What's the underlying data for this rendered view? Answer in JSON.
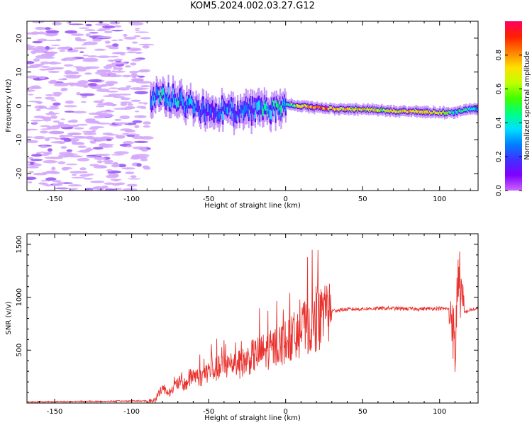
{
  "title": "KOM5.2024.002.03.27.G12",
  "colors": {
    "snr_line": "#e8322e",
    "colorbar": [
      "#cc66ff",
      "#8000ff",
      "#4030ff",
      "#0080ff",
      "#00e0ff",
      "#00ff80",
      "#40ff00",
      "#c0ff00",
      "#ffe000",
      "#ff8000",
      "#ff2000",
      "#ff0060"
    ]
  },
  "chart_data": [
    {
      "type": "heatmap",
      "xlabel": "Height of straight line (km)",
      "ylabel": "Frequency (Hz)",
      "xlim": [
        -168,
        125
      ],
      "ylim": [
        -25,
        25
      ],
      "xticks": [
        -150,
        -100,
        -50,
        0,
        50,
        100
      ],
      "yticks": [
        -20,
        -10,
        0,
        10,
        20
      ],
      "colorbar": {
        "label": "Normalized spectral amplitude",
        "range": [
          0,
          1
        ],
        "ticks": [
          0.0,
          0.2,
          0.4,
          0.6,
          0.8
        ]
      },
      "signal_track": [
        {
          "x": -88,
          "freq": 2.5,
          "amp": 0.3
        },
        {
          "x": -80,
          "freq": 2.5,
          "amp": 0.35
        },
        {
          "x": -70,
          "freq": 1.5,
          "amp": 0.3
        },
        {
          "x": -60,
          "freq": -0.5,
          "amp": 0.25
        },
        {
          "x": -50,
          "freq": -2,
          "amp": 0.2
        },
        {
          "x": -40,
          "freq": -1.5,
          "amp": 0.25
        },
        {
          "x": -30,
          "freq": -1.5,
          "amp": 0.25
        },
        {
          "x": -20,
          "freq": -1,
          "amp": 0.3
        },
        {
          "x": -10,
          "freq": -1.5,
          "amp": 0.35
        },
        {
          "x": 0,
          "freq": 0.5,
          "amp": 0.4
        },
        {
          "x": 10,
          "freq": 0,
          "amp": 0.65
        },
        {
          "x": 20,
          "freq": -0.5,
          "amp": 0.85
        },
        {
          "x": 30,
          "freq": -0.8,
          "amp": 0.75
        },
        {
          "x": 40,
          "freq": -1,
          "amp": 0.7
        },
        {
          "x": 50,
          "freq": -1,
          "amp": 0.7
        },
        {
          "x": 60,
          "freq": -1.3,
          "amp": 0.6
        },
        {
          "x": 70,
          "freq": -1.5,
          "amp": 0.65
        },
        {
          "x": 80,
          "freq": -1.6,
          "amp": 0.75
        },
        {
          "x": 90,
          "freq": -1.8,
          "amp": 0.7
        },
        {
          "x": 100,
          "freq": -2,
          "amp": 0.7
        },
        {
          "x": 110,
          "freq": -1.8,
          "amp": 0.4
        },
        {
          "x": 120,
          "freq": -1,
          "amp": 0.4
        }
      ],
      "noise_region_x": [
        -168,
        -90
      ]
    },
    {
      "type": "line",
      "xlabel": "Height of straight line (km)",
      "ylabel": "SNR (v/v)",
      "xlim": [
        -168,
        125
      ],
      "ylim": [
        0,
        1600
      ],
      "xticks": [
        -150,
        -100,
        -50,
        0,
        50,
        100
      ],
      "yticks": [
        500,
        1000,
        1500
      ],
      "series": [
        {
          "x": [
            -168,
            -120,
            -90,
            -85,
            -80,
            -75,
            -70,
            -65,
            -60,
            -55,
            -50,
            -45,
            -40,
            -35,
            -30,
            -25,
            -20,
            -15,
            -10,
            -5,
            0,
            5,
            10,
            15,
            20,
            25,
            30,
            35,
            40,
            50,
            60,
            70,
            80,
            90,
            100,
            105,
            108,
            110,
            112,
            115,
            120,
            125
          ],
          "y": [
            5,
            10,
            15,
            30,
            150,
            100,
            200,
            180,
            280,
            250,
            320,
            330,
            350,
            380,
            380,
            420,
            470,
            500,
            520,
            560,
            600,
            650,
            700,
            760,
            800,
            840,
            870,
            880,
            885,
            890,
            895,
            895,
            890,
            890,
            895,
            890,
            870,
            400,
            1300,
            850,
            880,
            890
          ]
        }
      ]
    }
  ]
}
